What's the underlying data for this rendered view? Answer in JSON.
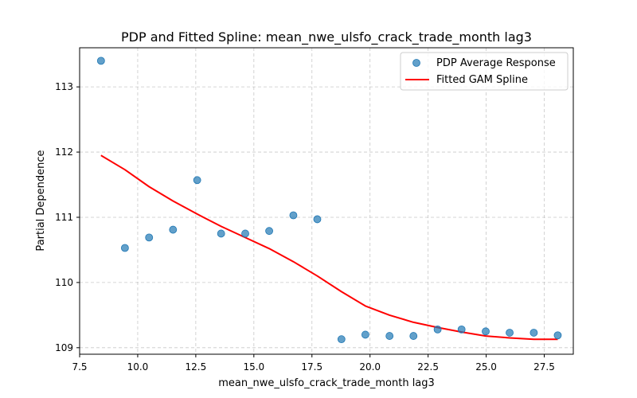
{
  "chart_data": {
    "type": "scatter",
    "title": "PDP and Fitted Spline: mean_nwe_ulsfo_crack_trade_month lag3",
    "xlabel": "mean_nwe_ulsfo_crack_trade_month lag3",
    "ylabel": "Partial Dependence",
    "xlim": [
      7.5,
      28.75
    ],
    "ylim": [
      108.9,
      113.6
    ],
    "xticks": [
      7.5,
      10.0,
      12.5,
      15.0,
      17.5,
      20.0,
      22.5,
      25.0,
      27.5
    ],
    "xtick_labels": [
      "7.5",
      "10.0",
      "12.5",
      "15.0",
      "17.5",
      "20.0",
      "22.5",
      "25.0",
      "27.5"
    ],
    "yticks": [
      109,
      110,
      111,
      112,
      113
    ],
    "ytick_labels": [
      "109",
      "110",
      "111",
      "112",
      "113"
    ],
    "grid": true,
    "legend_position": "top-right",
    "series": [
      {
        "name": "PDP Average Response",
        "kind": "scatter",
        "color": "#1f77b4",
        "x": [
          8.42,
          9.45,
          10.49,
          11.52,
          12.56,
          13.59,
          14.63,
          15.66,
          16.7,
          17.73,
          18.77,
          19.8,
          20.84,
          21.87,
          22.91,
          23.94,
          24.98,
          26.01,
          27.05,
          28.08
        ],
        "y": [
          113.4,
          110.53,
          110.69,
          110.81,
          111.57,
          110.75,
          110.75,
          110.79,
          111.03,
          110.97,
          109.13,
          109.2,
          109.18,
          109.18,
          109.28,
          109.28,
          109.25,
          109.23,
          109.23,
          109.19
        ]
      },
      {
        "name": "Fitted GAM Spline",
        "kind": "line",
        "color": "#ff0000",
        "x": [
          8.42,
          9.45,
          10.49,
          11.52,
          12.56,
          13.59,
          14.63,
          15.66,
          16.7,
          17.73,
          18.77,
          19.8,
          20.84,
          21.87,
          22.91,
          23.94,
          24.98,
          26.01,
          27.05,
          28.08
        ],
        "y": [
          111.95,
          111.73,
          111.47,
          111.25,
          111.05,
          110.86,
          110.69,
          110.52,
          110.32,
          110.1,
          109.86,
          109.64,
          109.5,
          109.39,
          109.31,
          109.24,
          109.18,
          109.15,
          109.13,
          109.13
        ]
      }
    ]
  }
}
